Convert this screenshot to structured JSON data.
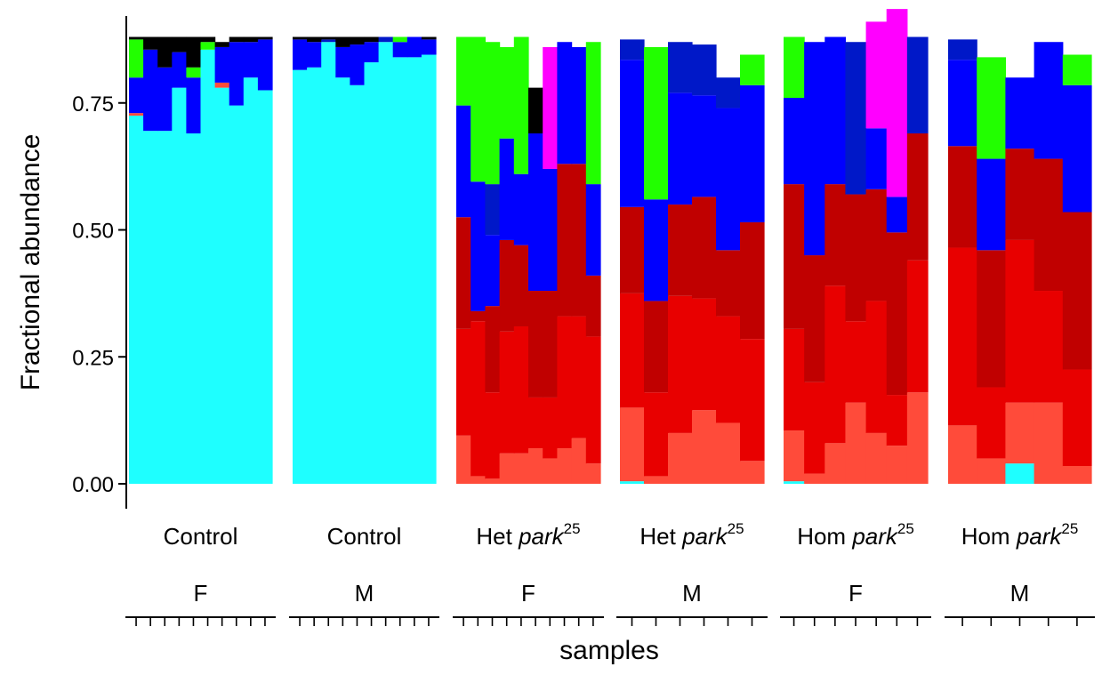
{
  "chart_data": {
    "type": "bar",
    "stacked": true,
    "ylabel": "Fractional abundance",
    "xlabel": "samples",
    "ylim": [
      0,
      0.88
    ],
    "yticks": [
      "0.00",
      "0.25",
      "0.50",
      "0.75"
    ],
    "ytick_values": [
      0,
      0.25,
      0.5,
      0.75
    ],
    "grid": false,
    "legend": "none",
    "category_colors": {
      "cyan": "#1EFFFF",
      "coral": "#FF4B3A",
      "red": "#E80000",
      "darkred": "#C00000",
      "blue": "#0000FF",
      "navy": "#0018C8",
      "green": "#22FF00",
      "magenta": "#FF00FF",
      "black": "#000000"
    },
    "panels": [
      {
        "label": "Control",
        "label_italic": "",
        "label_sup": "",
        "sex": "F",
        "samples": [
          {
            "cyan": 0.725,
            "coral": 0.005,
            "blue": 0.07,
            "green": 0.075,
            "black": 0.005
          },
          {
            "cyan": 0.695,
            "blue": 0.16,
            "black": 0.025
          },
          {
            "cyan": 0.695,
            "blue": 0.125,
            "black": 0.06
          },
          {
            "cyan": 0.78,
            "blue": 0.07,
            "black": 0.03
          },
          {
            "cyan": 0.69,
            "blue": 0.11,
            "green": 0.02,
            "black": 0.06
          },
          {
            "cyan": 0.855,
            "blue": 0.0,
            "green": 0.015,
            "black": 0.01
          },
          {
            "cyan": 0.78,
            "coral": 0.01,
            "blue": 0.07,
            "black": 0.01
          },
          {
            "cyan": 0.745,
            "blue": 0.125,
            "black": 0.01
          },
          {
            "cyan": 0.8,
            "blue": 0.07,
            "black": 0.01
          },
          {
            "cyan": 0.775,
            "blue": 0.1,
            "black": 0.005
          }
        ]
      },
      {
        "label": "Control",
        "label_italic": "",
        "label_sup": "",
        "sex": "M",
        "samples": [
          {
            "cyan": 0.815,
            "blue": 0.06,
            "black": 0.005
          },
          {
            "cyan": 0.82,
            "blue": 0.05,
            "black": 0.01
          },
          {
            "cyan": 0.87,
            "navy": 0.005,
            "black": 0.005
          },
          {
            "cyan": 0.8,
            "blue": 0.06,
            "black": 0.02
          },
          {
            "cyan": 0.785,
            "blue": 0.08,
            "black": 0.015
          },
          {
            "cyan": 0.83,
            "blue": 0.04,
            "black": 0.01
          },
          {
            "cyan": 0.87,
            "navy": 0.01
          },
          {
            "cyan": 0.84,
            "blue": 0.03,
            "green": 0.01
          },
          {
            "cyan": 0.84,
            "blue": 0.04
          },
          {
            "cyan": 0.845,
            "blue": 0.03,
            "black": 0.005
          }
        ]
      },
      {
        "label": "Het ",
        "label_italic": "park",
        "label_sup": "25",
        "sex": "F",
        "samples": [
          {
            "coral": 0.095,
            "red": 0.21,
            "darkred": 0.22,
            "blue": 0.22,
            "green": 0.135
          },
          {
            "coral": 0.015,
            "red": 0.305,
            "darkred": 0.02,
            "blue": 0.255,
            "green": 0.285
          },
          {
            "coral": 0.01,
            "red": 0.17,
            "darkred": 0.17,
            "navy": 0.1,
            "blue": 0.14,
            "green": 0.28
          },
          {
            "coral": 0.06,
            "red": 0.24,
            "darkred": 0.18,
            "blue": 0.2,
            "green": 0.18
          },
          {
            "coral": 0.06,
            "red": 0.25,
            "darkred": 0.16,
            "blue": 0.14,
            "green": 0.27
          },
          {
            "coral": 0.07,
            "red": 0.1,
            "darkred": 0.21,
            "blue": 0.31,
            "black": 0.09
          },
          {
            "coral": 0.05,
            "red": 0.12,
            "darkred": 0.21,
            "blue": 0.24,
            "magenta": 0.24
          },
          {
            "coral": 0.07,
            "red": 0.26,
            "darkred": 0.3,
            "blue": 0.24
          },
          {
            "coral": 0.09,
            "red": 0.24,
            "darkred": 0.3,
            "blue": 0.23
          },
          {
            "coral": 0.04,
            "red": 0.25,
            "darkred": 0.12,
            "blue": 0.18,
            "green": 0.28
          }
        ]
      },
      {
        "label": "Het ",
        "label_italic": "park",
        "label_sup": "25",
        "sex": "M",
        "samples": [
          {
            "cyan": 0.005,
            "coral": 0.145,
            "red": 0.225,
            "darkred": 0.17,
            "blue": 0.29,
            "navy": 0.04
          },
          {
            "coral": 0.015,
            "red": 0.165,
            "darkred": 0.18,
            "blue": 0.2,
            "green": 0.3
          },
          {
            "coral": 0.1,
            "red": 0.27,
            "darkred": 0.18,
            "blue": 0.22,
            "navy": 0.1
          },
          {
            "coral": 0.145,
            "red": 0.22,
            "darkred": 0.2,
            "blue": 0.2,
            "navy": 0.1
          },
          {
            "coral": 0.12,
            "red": 0.21,
            "darkred": 0.13,
            "blue": 0.28,
            "navy": 0.06
          },
          {
            "coral": 0.045,
            "red": 0.24,
            "darkred": 0.23,
            "blue": 0.27,
            "green": 0.06
          }
        ]
      },
      {
        "label": "Hom ",
        "label_italic": "park",
        "label_sup": "25",
        "sex": "F",
        "samples": [
          {
            "cyan": 0.005,
            "coral": 0.1,
            "red": 0.2,
            "darkred": 0.285,
            "blue": 0.17,
            "green": 0.12
          },
          {
            "coral": 0.02,
            "red": 0.18,
            "darkred": 0.25,
            "blue": 0.42
          },
          {
            "coral": 0.08,
            "red": 0.31,
            "darkred": 0.2,
            "blue": 0.29
          },
          {
            "coral": 0.16,
            "red": 0.16,
            "darkred": 0.25,
            "navy": 0.3
          },
          {
            "coral": 0.1,
            "red": 0.26,
            "darkred": 0.22,
            "blue": 0.12,
            "magenta": 0.21
          },
          {
            "coral": 0.075,
            "red": 0.1,
            "darkred": 0.32,
            "blue": 0.07,
            "magenta": 0.37
          },
          {
            "coral": 0.18,
            "red": 0.26,
            "darkred": 0.25,
            "navy": 0.19
          }
        ]
      },
      {
        "label": "Hom ",
        "label_italic": "park",
        "label_sup": "25",
        "sex": "M",
        "samples": [
          {
            "coral": 0.115,
            "red": 0.35,
            "darkred": 0.2,
            "blue": 0.17,
            "navy": 0.04
          },
          {
            "coral": 0.05,
            "red": 0.14,
            "darkred": 0.27,
            "blue": 0.18,
            "green": 0.2
          },
          {
            "cyan": 0.04,
            "coral": 0.12,
            "red": 0.32,
            "darkred": 0.18,
            "blue": 0.14
          },
          {
            "coral": 0.16,
            "red": 0.22,
            "darkred": 0.26,
            "blue": 0.23
          },
          {
            "coral": 0.035,
            "red": 0.19,
            "darkred": 0.31,
            "blue": 0.25,
            "green": 0.06
          }
        ]
      }
    ]
  }
}
